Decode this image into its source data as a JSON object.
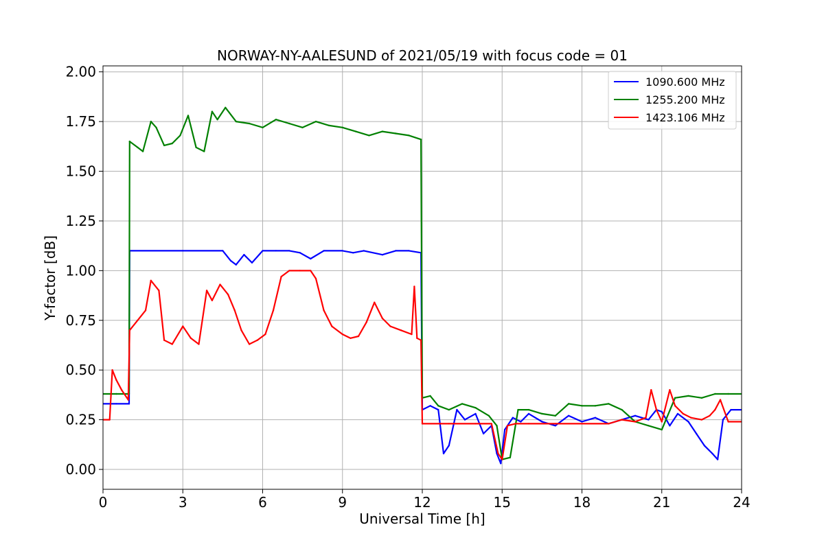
{
  "chart_data": {
    "type": "line",
    "title": "NORWAY-NY-AALESUND of 2021/05/19 with focus code = 01",
    "xlabel": "Universal Time [h]",
    "ylabel": "Y-factor [dB]",
    "xlim": [
      0,
      24
    ],
    "ylim": [
      -0.1,
      2.03
    ],
    "xticks": [
      0,
      3,
      6,
      9,
      12,
      15,
      18,
      21,
      24
    ],
    "xtick_labels": [
      "0",
      "3",
      "6",
      "9",
      "12",
      "15",
      "18",
      "21",
      "24"
    ],
    "yticks": [
      0,
      0.25,
      0.5,
      0.75,
      1.0,
      1.25,
      1.5,
      1.75,
      2.0
    ],
    "ytick_labels": [
      "0.00",
      "0.25",
      "0.50",
      "0.75",
      "1.00",
      "1.25",
      "1.50",
      "1.75",
      "2.00"
    ],
    "grid": true,
    "legend_position": "top-right",
    "series": [
      {
        "name": "1090.600 MHz",
        "color": "#0000ff",
        "x": [
          0,
          0.5,
          0.98,
          1.0,
          3,
          4.5,
          4.8,
          5,
          5.3,
          5.6,
          6,
          6.5,
          7,
          7.4,
          7.8,
          8.3,
          9,
          9.4,
          9.8,
          10.5,
          11,
          11.5,
          11.95,
          12.0,
          12.3,
          12.6,
          12.8,
          13.0,
          13.3,
          13.6,
          14.0,
          14.3,
          14.6,
          14.8,
          14.95,
          15.1,
          15.4,
          15.7,
          16.0,
          16.5,
          17.0,
          17.5,
          18.0,
          18.5,
          19.0,
          19.5,
          20.0,
          20.5,
          20.8,
          21.0,
          21.3,
          21.6,
          22.0,
          22.3,
          22.6,
          22.9,
          23.1,
          23.3,
          23.6,
          24
        ],
        "y": [
          0.33,
          0.33,
          0.33,
          1.1,
          1.1,
          1.1,
          1.05,
          1.03,
          1.08,
          1.04,
          1.1,
          1.1,
          1.1,
          1.09,
          1.06,
          1.1,
          1.1,
          1.09,
          1.1,
          1.08,
          1.1,
          1.1,
          1.09,
          0.3,
          0.32,
          0.3,
          0.08,
          0.12,
          0.3,
          0.25,
          0.28,
          0.18,
          0.22,
          0.08,
          0.03,
          0.2,
          0.26,
          0.24,
          0.28,
          0.24,
          0.22,
          0.27,
          0.24,
          0.26,
          0.23,
          0.25,
          0.27,
          0.25,
          0.3,
          0.29,
          0.22,
          0.28,
          0.24,
          0.18,
          0.12,
          0.08,
          0.05,
          0.25,
          0.3,
          0.3
        ]
      },
      {
        "name": "1255.200 MHz",
        "color": "#008000",
        "x": [
          0,
          0.5,
          0.98,
          1.0,
          1.3,
          1.5,
          1.8,
          2.0,
          2.3,
          2.6,
          2.9,
          3.2,
          3.5,
          3.8,
          4.1,
          4.3,
          4.6,
          5.0,
          5.5,
          6.0,
          6.5,
          7.0,
          7.5,
          8.0,
          8.5,
          9.0,
          9.5,
          10.0,
          10.5,
          11.0,
          11.5,
          11.95,
          12.0,
          12.3,
          12.6,
          13.0,
          13.5,
          14.0,
          14.5,
          14.8,
          15.0,
          15.3,
          15.6,
          16.0,
          16.5,
          17.0,
          17.5,
          18.0,
          18.5,
          19.0,
          19.5,
          20.0,
          20.5,
          21.0,
          21.5,
          22.0,
          22.5,
          23.0,
          23.5,
          24
        ],
        "y": [
          0.38,
          0.38,
          0.38,
          1.65,
          1.62,
          1.6,
          1.75,
          1.72,
          1.63,
          1.64,
          1.68,
          1.78,
          1.62,
          1.6,
          1.8,
          1.76,
          1.82,
          1.75,
          1.74,
          1.72,
          1.76,
          1.74,
          1.72,
          1.75,
          1.73,
          1.72,
          1.7,
          1.68,
          1.7,
          1.69,
          1.68,
          1.66,
          0.36,
          0.37,
          0.32,
          0.3,
          0.33,
          0.31,
          0.27,
          0.22,
          0.05,
          0.06,
          0.3,
          0.3,
          0.28,
          0.27,
          0.33,
          0.32,
          0.32,
          0.33,
          0.3,
          0.24,
          0.22,
          0.2,
          0.36,
          0.37,
          0.36,
          0.38,
          0.38,
          0.38
        ]
      },
      {
        "name": "1423.106 MHz",
        "color": "#ff0000",
        "x": [
          0,
          0.25,
          0.35,
          0.5,
          0.7,
          0.95,
          1.0,
          1.3,
          1.6,
          1.8,
          2.1,
          2.3,
          2.6,
          3.0,
          3.3,
          3.6,
          3.9,
          4.1,
          4.4,
          4.7,
          4.95,
          5.2,
          5.5,
          5.8,
          6.1,
          6.4,
          6.7,
          7.0,
          7.4,
          7.8,
          8.0,
          8.3,
          8.6,
          9.0,
          9.3,
          9.6,
          9.9,
          10.2,
          10.5,
          10.8,
          11.2,
          11.6,
          11.7,
          11.8,
          11.95,
          12.0,
          13.0,
          14.0,
          14.6,
          14.85,
          15.0,
          15.2,
          15.5,
          16.0,
          17.0,
          18.0,
          19.0,
          19.5,
          20.0,
          20.4,
          20.6,
          20.8,
          21.0,
          21.3,
          21.5,
          21.8,
          22.1,
          22.5,
          22.8,
          23.0,
          23.2,
          23.5,
          24
        ],
        "y": [
          0.25,
          0.25,
          0.5,
          0.45,
          0.4,
          0.35,
          0.7,
          0.75,
          0.8,
          0.95,
          0.9,
          0.65,
          0.63,
          0.72,
          0.66,
          0.63,
          0.9,
          0.85,
          0.93,
          0.88,
          0.8,
          0.7,
          0.63,
          0.65,
          0.68,
          0.8,
          0.97,
          1.0,
          1.0,
          1.0,
          0.96,
          0.8,
          0.72,
          0.68,
          0.66,
          0.67,
          0.74,
          0.84,
          0.76,
          0.72,
          0.7,
          0.68,
          0.92,
          0.66,
          0.65,
          0.23,
          0.23,
          0.23,
          0.23,
          0.08,
          0.05,
          0.22,
          0.23,
          0.23,
          0.23,
          0.23,
          0.23,
          0.25,
          0.24,
          0.26,
          0.4,
          0.3,
          0.24,
          0.4,
          0.32,
          0.28,
          0.26,
          0.25,
          0.27,
          0.3,
          0.35,
          0.24,
          0.24
        ]
      }
    ]
  }
}
